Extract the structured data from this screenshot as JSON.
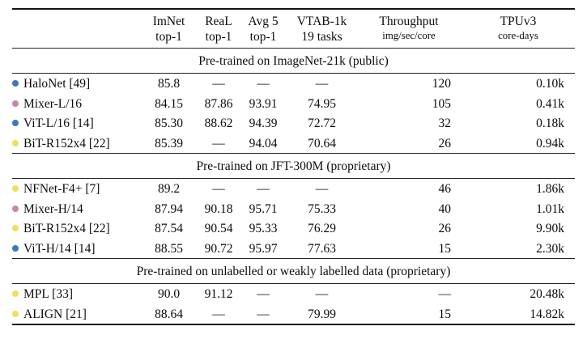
{
  "table": {
    "columns": [
      {
        "key": "imnet",
        "line1": "ImNet",
        "line2": "top-1",
        "small_line2": false
      },
      {
        "key": "real",
        "line1": "ReaL",
        "line2": "top-1",
        "small_line2": false
      },
      {
        "key": "avg5",
        "line1": "Avg 5",
        "line2": "top-1",
        "small_line2": false
      },
      {
        "key": "vtab",
        "line1": "VTAB-1k",
        "line2": "19 tasks",
        "small_line2": false
      },
      {
        "key": "throughput",
        "line1": "Throughput",
        "line2": "img/sec/core",
        "small_line2": true
      },
      {
        "key": "tpuv3",
        "line1": "TPUv3",
        "line2": "core-days",
        "small_line2": true
      }
    ],
    "bullet_colors": {
      "blue": "#3d79b8",
      "pink": "#c687b0",
      "yellow": "#ece05e"
    },
    "sections": [
      {
        "title": "Pre-trained on ImageNet-21k (public)",
        "rows": [
          {
            "bullet": "blue",
            "model": "HaloNet [49]",
            "values": [
              "85.8",
              "—",
              "—",
              "—",
              "120",
              "0.10k"
            ]
          },
          {
            "bullet": "pink",
            "model": "Mixer-L/16",
            "values": [
              "84.15",
              "87.86",
              "93.91",
              "74.95",
              "105",
              "0.41k"
            ]
          },
          {
            "bullet": "blue",
            "model": "ViT-L/16 [14]",
            "values": [
              "85.30",
              "88.62",
              "94.39",
              "72.72",
              "32",
              "0.18k"
            ]
          },
          {
            "bullet": "yellow",
            "model": "BiT-R152x4 [22]",
            "values": [
              "85.39",
              "—",
              "94.04",
              "70.64",
              "26",
              "0.94k"
            ]
          }
        ]
      },
      {
        "title": "Pre-trained on JFT-300M (proprietary)",
        "rows": [
          {
            "bullet": "yellow",
            "model": "NFNet-F4+ [7]",
            "values": [
              "89.2",
              "—",
              "—",
              "—",
              "46",
              "1.86k"
            ]
          },
          {
            "bullet": "pink",
            "model": "Mixer-H/14",
            "values": [
              "87.94",
              "90.18",
              "95.71",
              "75.33",
              "40",
              "1.01k"
            ]
          },
          {
            "bullet": "yellow",
            "model": "BiT-R152x4 [22]",
            "values": [
              "87.54",
              "90.54",
              "95.33",
              "76.29",
              "26",
              "9.90k"
            ]
          },
          {
            "bullet": "blue",
            "model": "ViT-H/14 [14]",
            "values": [
              "88.55",
              "90.72",
              "95.97",
              "77.63",
              "15",
              "2.30k"
            ]
          }
        ]
      },
      {
        "title": "Pre-trained on unlabelled or weakly labelled data (proprietary)",
        "rows": [
          {
            "bullet": "yellow",
            "model": "MPL [33]",
            "values": [
              "90.0",
              "91.12",
              "—",
              "—",
              "—",
              "20.48k"
            ]
          },
          {
            "bullet": "yellow",
            "model": "ALIGN [21]",
            "values": [
              "88.64",
              "—",
              "—",
              "79.99",
              "15",
              "14.82k"
            ]
          }
        ]
      }
    ]
  }
}
